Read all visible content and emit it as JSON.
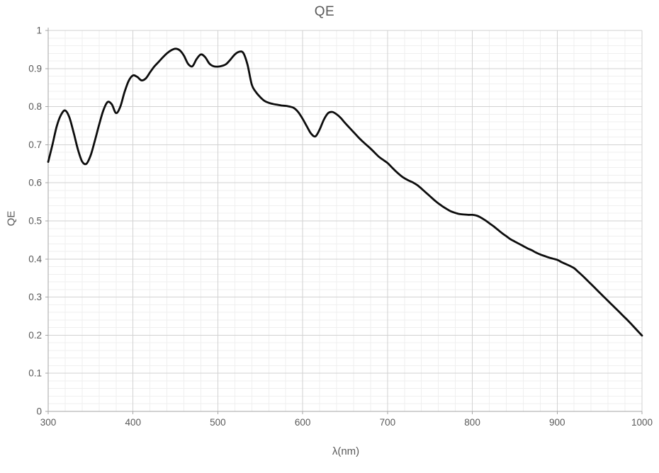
{
  "chart": {
    "title": "QE",
    "x_axis_title": "λ(nm)",
    "y_axis_title": "QE"
  },
  "chart_data": {
    "type": "line",
    "title": "QE",
    "xlabel": "λ(nm)",
    "ylabel": "QE",
    "xlim": [
      300,
      1000
    ],
    "ylim": [
      0,
      1
    ],
    "x_tick_labels": [
      "300",
      "400",
      "500",
      "600",
      "700",
      "800",
      "900",
      "1000"
    ],
    "y_tick_labels": [
      "0",
      "0.1",
      "0.2",
      "0.3",
      "0.4",
      "0.5",
      "0.6",
      "0.7",
      "0.8",
      "0.9",
      "1"
    ],
    "x_major_step": 100,
    "y_major_step": 0.1,
    "x_minor_step": 20,
    "y_minor_step": 0.02,
    "grid": "major-and-minor",
    "legend_position": "none",
    "colors": {
      "line": "#0d0d0d",
      "axis": "#a6a6a6",
      "grid_major": "#d2d2d2",
      "grid_minor": "#efefef",
      "text": "#595959",
      "background": "#ffffff"
    },
    "series": [
      {
        "name": "QE",
        "points": [
          [
            300,
            0.655
          ],
          [
            305,
            0.7
          ],
          [
            310,
            0.748
          ],
          [
            315,
            0.778
          ],
          [
            320,
            0.79
          ],
          [
            325,
            0.772
          ],
          [
            330,
            0.732
          ],
          [
            335,
            0.688
          ],
          [
            340,
            0.656
          ],
          [
            345,
            0.65
          ],
          [
            350,
            0.672
          ],
          [
            355,
            0.71
          ],
          [
            360,
            0.752
          ],
          [
            365,
            0.79
          ],
          [
            370,
            0.812
          ],
          [
            375,
            0.806
          ],
          [
            380,
            0.783
          ],
          [
            385,
            0.8
          ],
          [
            390,
            0.838
          ],
          [
            395,
            0.868
          ],
          [
            400,
            0.882
          ],
          [
            405,
            0.878
          ],
          [
            410,
            0.869
          ],
          [
            415,
            0.874
          ],
          [
            420,
            0.89
          ],
          [
            425,
            0.905
          ],
          [
            430,
            0.917
          ],
          [
            435,
            0.929
          ],
          [
            440,
            0.94
          ],
          [
            445,
            0.948
          ],
          [
            450,
            0.952
          ],
          [
            455,
            0.948
          ],
          [
            460,
            0.934
          ],
          [
            465,
            0.912
          ],
          [
            470,
            0.906
          ],
          [
            475,
            0.925
          ],
          [
            480,
            0.937
          ],
          [
            485,
            0.93
          ],
          [
            490,
            0.913
          ],
          [
            495,
            0.906
          ],
          [
            500,
            0.905
          ],
          [
            505,
            0.907
          ],
          [
            510,
            0.912
          ],
          [
            515,
            0.924
          ],
          [
            520,
            0.937
          ],
          [
            525,
            0.944
          ],
          [
            530,
            0.941
          ],
          [
            535,
            0.91
          ],
          [
            540,
            0.858
          ],
          [
            545,
            0.838
          ],
          [
            550,
            0.825
          ],
          [
            555,
            0.815
          ],
          [
            560,
            0.81
          ],
          [
            565,
            0.807
          ],
          [
            570,
            0.805
          ],
          [
            575,
            0.803
          ],
          [
            580,
            0.802
          ],
          [
            585,
            0.8
          ],
          [
            590,
            0.796
          ],
          [
            595,
            0.785
          ],
          [
            600,
            0.768
          ],
          [
            605,
            0.748
          ],
          [
            610,
            0.729
          ],
          [
            615,
            0.722
          ],
          [
            620,
            0.74
          ],
          [
            625,
            0.766
          ],
          [
            630,
            0.783
          ],
          [
            635,
            0.786
          ],
          [
            640,
            0.78
          ],
          [
            645,
            0.77
          ],
          [
            650,
            0.757
          ],
          [
            655,
            0.745
          ],
          [
            660,
            0.733
          ],
          [
            665,
            0.721
          ],
          [
            670,
            0.71
          ],
          [
            675,
            0.7
          ],
          [
            680,
            0.69
          ],
          [
            685,
            0.679
          ],
          [
            690,
            0.668
          ],
          [
            695,
            0.66
          ],
          [
            700,
            0.652
          ],
          [
            705,
            0.641
          ],
          [
            710,
            0.63
          ],
          [
            715,
            0.62
          ],
          [
            720,
            0.612
          ],
          [
            725,
            0.606
          ],
          [
            730,
            0.601
          ],
          [
            735,
            0.594
          ],
          [
            740,
            0.585
          ],
          [
            745,
            0.575
          ],
          [
            750,
            0.565
          ],
          [
            755,
            0.555
          ],
          [
            760,
            0.546
          ],
          [
            765,
            0.538
          ],
          [
            770,
            0.531
          ],
          [
            775,
            0.525
          ],
          [
            780,
            0.521
          ],
          [
            785,
            0.518
          ],
          [
            790,
            0.517
          ],
          [
            795,
            0.516
          ],
          [
            800,
            0.516
          ],
          [
            805,
            0.514
          ],
          [
            810,
            0.509
          ],
          [
            815,
            0.502
          ],
          [
            820,
            0.494
          ],
          [
            825,
            0.486
          ],
          [
            830,
            0.477
          ],
          [
            835,
            0.468
          ],
          [
            840,
            0.46
          ],
          [
            845,
            0.452
          ],
          [
            850,
            0.446
          ],
          [
            855,
            0.44
          ],
          [
            860,
            0.434
          ],
          [
            865,
            0.428
          ],
          [
            870,
            0.423
          ],
          [
            875,
            0.417
          ],
          [
            880,
            0.412
          ],
          [
            885,
            0.408
          ],
          [
            890,
            0.404
          ],
          [
            895,
            0.401
          ],
          [
            900,
            0.398
          ],
          [
            905,
            0.392
          ],
          [
            910,
            0.387
          ],
          [
            915,
            0.382
          ],
          [
            920,
            0.376
          ],
          [
            925,
            0.366
          ],
          [
            930,
            0.356
          ],
          [
            935,
            0.345
          ],
          [
            940,
            0.334
          ],
          [
            945,
            0.323
          ],
          [
            950,
            0.312
          ],
          [
            955,
            0.301
          ],
          [
            960,
            0.29
          ],
          [
            965,
            0.279
          ],
          [
            970,
            0.268
          ],
          [
            975,
            0.257
          ],
          [
            980,
            0.246
          ],
          [
            985,
            0.235
          ],
          [
            990,
            0.223
          ],
          [
            995,
            0.211
          ],
          [
            1000,
            0.199
          ]
        ]
      }
    ]
  }
}
